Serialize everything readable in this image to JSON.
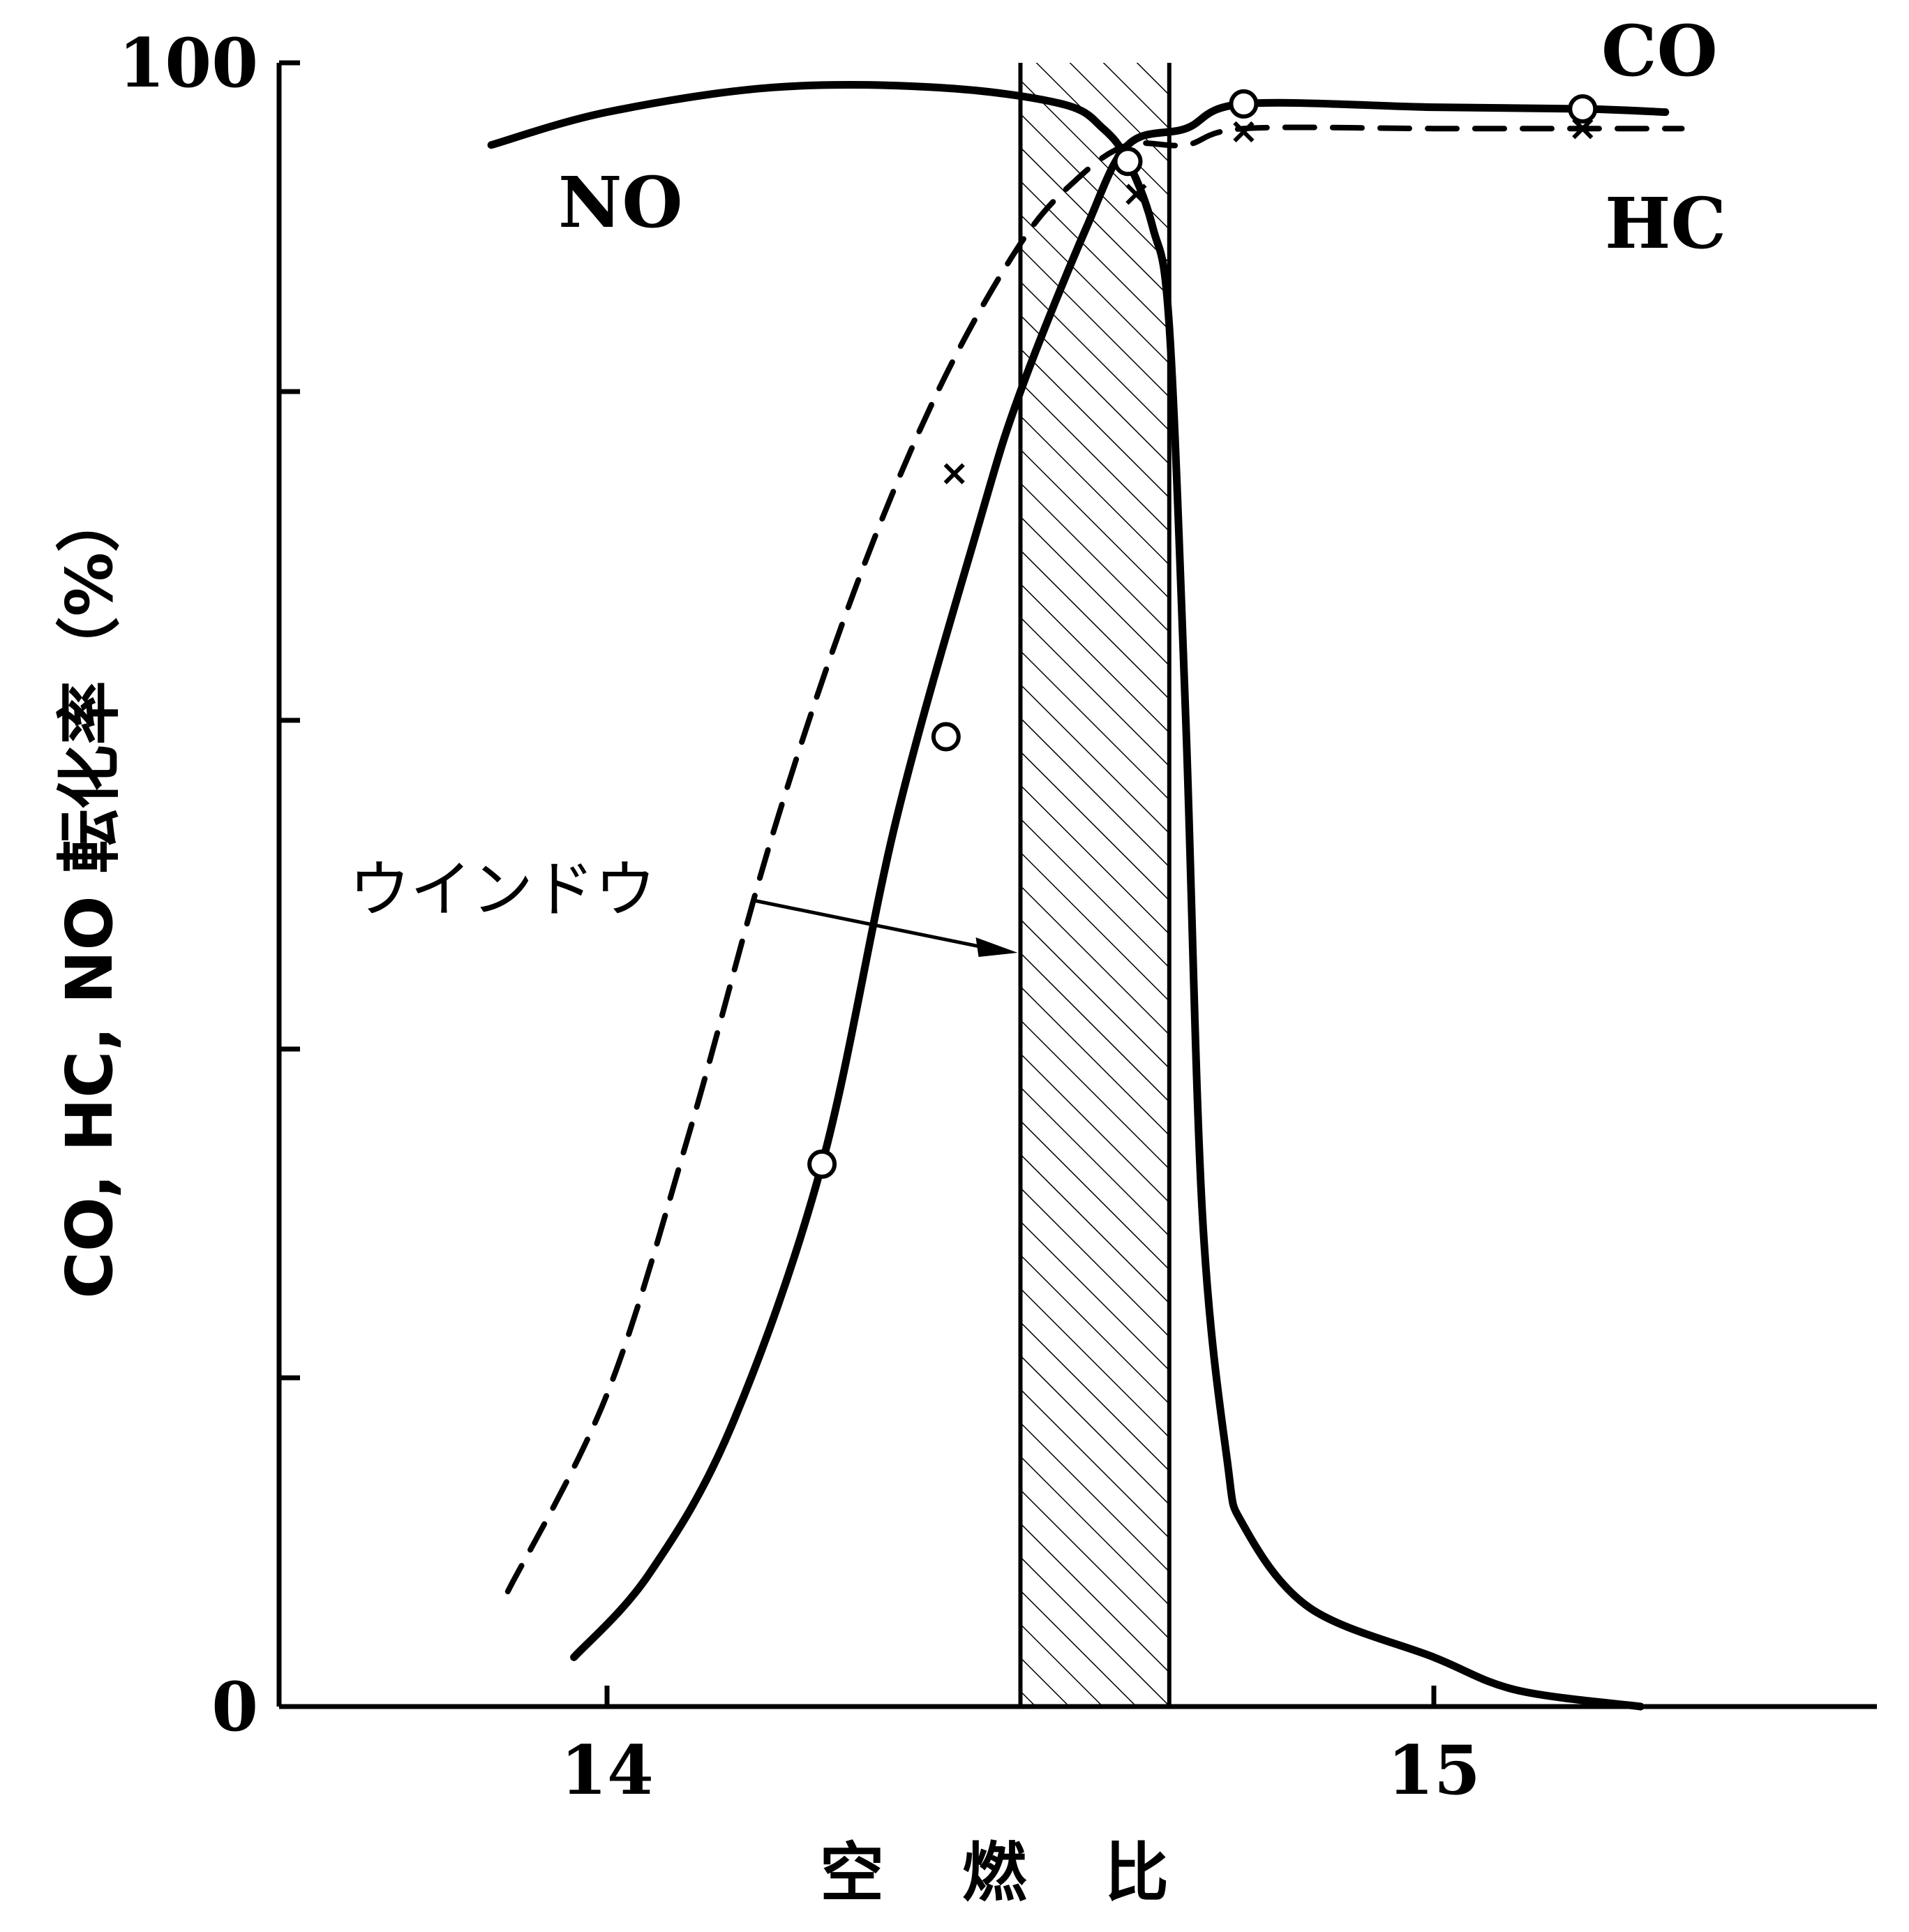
{
  "chart_data": {
    "type": "line",
    "xlabel": "空 燃 比",
    "ylabel": "CO, HC, NO 転化率（%）",
    "xlim": [
      13.6,
      15.55
    ],
    "ylim": [
      0,
      100
    ],
    "x_ticks": [
      14,
      15
    ],
    "x_tick_labels": [
      "14",
      "15"
    ],
    "y_ticks": [
      0,
      20,
      40,
      60,
      80,
      100
    ],
    "y_tick_labels": [
      "0",
      "",
      "",
      "",
      "",
      "100"
    ],
    "grid": false,
    "window": {
      "label": "ウインドウ",
      "x": [
        14.5,
        14.68
      ]
    },
    "series": [
      {
        "name": "NO",
        "style": "solid",
        "marker": "none",
        "x": [
          13.86,
          14.0,
          14.2,
          14.4,
          14.55,
          14.6,
          14.63,
          14.66,
          14.68,
          14.7,
          14.72,
          14.75,
          14.77,
          14.85,
          15.0,
          15.1,
          15.25
        ],
        "y": [
          95,
          97,
          98.5,
          98.5,
          97.5,
          96,
          94,
          90,
          84,
          60,
          30,
          15,
          11,
          6,
          3,
          1,
          0
        ]
      },
      {
        "name": "CO",
        "style": "solid",
        "marker": "circle",
        "x": [
          13.96,
          14.05,
          14.15,
          14.26,
          14.35,
          14.45,
          14.5,
          14.58,
          14.63,
          14.7,
          14.77,
          15.0,
          15.18,
          15.28
        ],
        "y": [
          3,
          8,
          17,
          33,
          54,
          72,
          80,
          90,
          95,
          96,
          97.5,
          97.3,
          97.2,
          97
        ],
        "marker_x": [
          14.26,
          14.41,
          14.63,
          14.77,
          15.18
        ],
        "marker_y": [
          33,
          59,
          94,
          97.5,
          97.2
        ]
      },
      {
        "name": "HC",
        "style": "dashed",
        "marker": "x",
        "x": [
          13.88,
          14.0,
          14.1,
          14.2,
          14.3,
          14.4,
          14.5,
          14.57,
          14.63,
          14.7,
          14.77,
          15.0,
          15.18,
          15.3
        ],
        "y": [
          7,
          19,
          35,
          53,
          68,
          80,
          89,
          93,
          95,
          95,
          96,
          96,
          96,
          96
        ],
        "marker_x": [
          14.42,
          14.64,
          14.77,
          15.18
        ],
        "marker_y": [
          75,
          92,
          95.8,
          96
        ]
      }
    ]
  }
}
